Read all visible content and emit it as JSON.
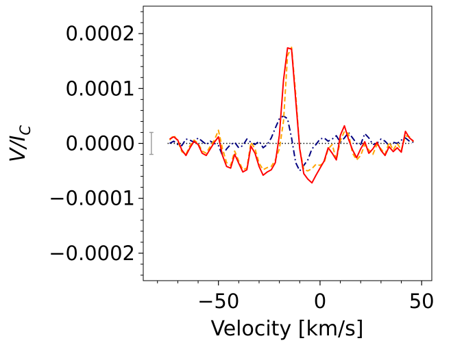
{
  "chart_data": {
    "type": "line",
    "xlabel": "Velocity [km/s]",
    "ylabel": "V/I",
    "ylabel_subscript": "C",
    "xlim": [
      -87,
      55
    ],
    "ylim": [
      -0.00025,
      0.00025
    ],
    "x_ticks": [
      {
        "value": -50,
        "label": "−50"
      },
      {
        "value": 0,
        "label": "0"
      },
      {
        "value": 50,
        "label": "50"
      }
    ],
    "y_ticks": [
      {
        "value": 0.0002,
        "label": "0.0002"
      },
      {
        "value": 0.0001,
        "label": "0.0001"
      },
      {
        "value": 0,
        "label": "0.0000"
      },
      {
        "value": -0.0001,
        "label": "−0.0001"
      },
      {
        "value": -0.0002,
        "label": "−0.0002"
      }
    ],
    "grid": false,
    "legend": "none",
    "error_bar": {
      "x": -83,
      "y_low": -2e-05,
      "y_high": 2e-05,
      "color": "#999999"
    },
    "zero_line": {
      "value": 0,
      "x_range": [
        -75,
        45
      ],
      "color": "#000000",
      "style": "dotted"
    },
    "series": [
      {
        "color": "#ff0000",
        "style": "solid",
        "x": [
          -74,
          -72,
          -70,
          -68,
          -66,
          -64,
          -62,
          -60,
          -58,
          -56,
          -54,
          -52,
          -50,
          -48,
          -46,
          -44,
          -42,
          -40,
          -38,
          -36,
          -34,
          -32,
          -30,
          -28,
          -26,
          -24,
          -22,
          -20,
          -18,
          -16,
          -14,
          -12,
          -10,
          -8,
          -6,
          -4,
          -2,
          0,
          2,
          4,
          6,
          8,
          10,
          12,
          14,
          16,
          18,
          20,
          22,
          24,
          26,
          28,
          30,
          32,
          34,
          36,
          38,
          40,
          42,
          44,
          46
        ],
        "y": [
          8e-06,
          1.2e-05,
          6e-06,
          -1.2e-05,
          -2.2e-05,
          -8e-06,
          4e-06,
          -2e-06,
          -1.8e-05,
          -2.2e-05,
          -1e-05,
          2e-06,
          1.2e-05,
          -2.2e-05,
          -4.2e-05,
          -4.5e-05,
          -2e-05,
          -3.6e-05,
          -5.2e-05,
          -4.8e-05,
          -5e-06,
          -1.8e-05,
          -4.2e-05,
          -5.8e-05,
          -5.2e-05,
          -4.8e-05,
          -3.5e-05,
          1.5e-05,
          0.000115,
          0.000174,
          0.000172,
          8e-05,
          -1e-05,
          -5.5e-05,
          -6.5e-05,
          -7.2e-05,
          -5.8e-05,
          -4.5e-05,
          -3.2e-05,
          -8e-06,
          -1.8e-05,
          -3e-05,
          1.5e-05,
          3.2e-05,
          8e-06,
          -1.2e-05,
          -2.6e-05,
          -1e-05,
          3e-06,
          -1.8e-05,
          -1e-05,
          2e-06,
          -1.3e-05,
          -2.2e-05,
          -6e-06,
          -1.5e-05,
          -8e-06,
          -1.6e-05,
          2.2e-05,
          1e-05,
          4e-06
        ]
      },
      {
        "color": "#ffa500",
        "style": "dashed",
        "x": [
          -74,
          -72,
          -70,
          -68,
          -66,
          -64,
          -62,
          -60,
          -58,
          -56,
          -54,
          -52,
          -50,
          -48,
          -46,
          -44,
          -42,
          -40,
          -38,
          -36,
          -34,
          -32,
          -30,
          -28,
          -26,
          -24,
          -22,
          -20,
          -18,
          -16,
          -14,
          -12,
          -10,
          -8,
          -6,
          -4,
          -2,
          0,
          2,
          4,
          6,
          8,
          10,
          12,
          14,
          16,
          18,
          20,
          22,
          24,
          26,
          28,
          30,
          32,
          34,
          36,
          38,
          40,
          42,
          44,
          46
        ],
        "y": [
          6e-06,
          1.5e-05,
          4e-06,
          -1.5e-05,
          -2e-05,
          -4e-06,
          6e-06,
          0.0,
          -1.4e-05,
          -1.8e-05,
          -5e-06,
          6e-06,
          2.4e-05,
          -1e-05,
          -3.5e-05,
          -4e-05,
          -1.4e-05,
          -3.2e-05,
          -4.8e-05,
          -4.5e-05,
          2e-06,
          -1e-05,
          -3.6e-05,
          -4.8e-05,
          -4.4e-05,
          -4.2e-05,
          -3e-05,
          -1e-05,
          4e-05,
          0.00016,
          0.000175,
          9e-05,
          -1e-05,
          -4.8e-05,
          -5e-05,
          -4.6e-05,
          -3.8e-05,
          -4e-05,
          -3.5e-05,
          -1e-05,
          -2e-06,
          -3e-05,
          5e-06,
          2.2e-05,
          1.8e-05,
          -1.8e-05,
          -3e-05,
          -2.2e-05,
          -2e-06,
          -1.2e-05,
          -2e-05,
          -2e-06,
          -1e-05,
          -2e-05,
          2e-06,
          -1.2e-05,
          0.0,
          -1.2e-05,
          1.4e-05,
          1.2e-05,
          3e-06
        ]
      },
      {
        "color": "#000080",
        "style": "dashdot",
        "x": [
          -74,
          -72,
          -70,
          -68,
          -66,
          -64,
          -62,
          -60,
          -58,
          -56,
          -54,
          -52,
          -50,
          -48,
          -46,
          -44,
          -42,
          -40,
          -38,
          -36,
          -34,
          -32,
          -30,
          -28,
          -26,
          -24,
          -22,
          -20,
          -18,
          -16,
          -14,
          -12,
          -10,
          -8,
          -6,
          -4,
          -2,
          0,
          2,
          4,
          6,
          8,
          10,
          12,
          14,
          16,
          18,
          20,
          22,
          24,
          26,
          28,
          30,
          32,
          34,
          36,
          38,
          40,
          42,
          44,
          46
        ],
        "y": [
          0.0,
          4e-06,
          -2e-06,
          -4e-06,
          8e-06,
          6e-06,
          2e-06,
          1e-05,
          4e-06,
          -2e-06,
          4e-06,
          0.0,
          -4e-06,
          -2.2e-05,
          -1e-05,
          -2e-06,
          2e-06,
          -8e-06,
          -4e-06,
          8e-06,
          2e-06,
          -2e-06,
          4e-06,
          -8e-06,
          -2e-06,
          1e-05,
          2.8e-05,
          4.5e-05,
          5e-05,
          4.5e-05,
          1e-05,
          -3.5e-05,
          -5e-05,
          -4e-05,
          -3e-05,
          -1e-05,
          -2e-06,
          8e-06,
          1e-05,
          4e-06,
          8e-06,
          1.4e-05,
          2e-06,
          1e-05,
          2e-05,
          1e-05,
          0.0,
          -2e-06,
          1.8e-05,
          1e-05,
          -2e-06,
          0.0,
          8e-06,
          4e-06,
          -4e-06,
          2e-06,
          0.0,
          6e-06,
          1e-05,
          4e-06,
          2e-06
        ]
      }
    ]
  }
}
